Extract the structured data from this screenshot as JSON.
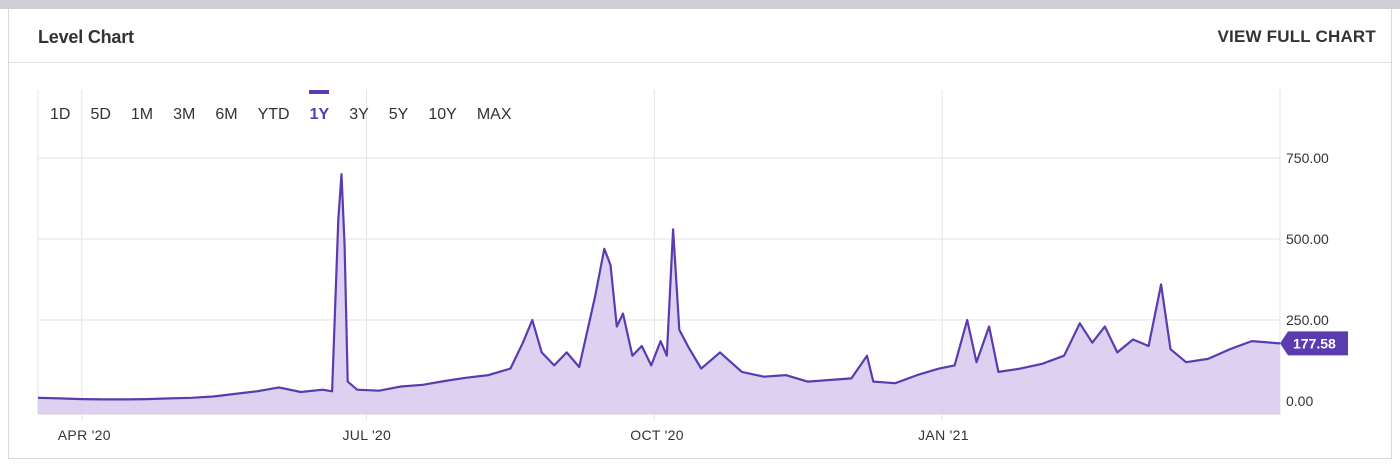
{
  "header": {
    "title": "Level Chart",
    "view_full_label": "VIEW FULL CHART"
  },
  "range_buttons": [
    "1D",
    "5D",
    "1M",
    "3M",
    "6M",
    "YTD",
    "1Y",
    "3Y",
    "5Y",
    "10Y",
    "MAX"
  ],
  "active_range": "1Y",
  "colors": {
    "line": "#5c3bb0",
    "fill": "#d9ccef",
    "grid": "#e3e3e8",
    "badge": "#5c3bb0"
  },
  "chart_data": {
    "type": "area",
    "y_ticks": [
      "750.00",
      "500.00",
      "250.00",
      "0.00"
    ],
    "y_tick_values": [
      750,
      500,
      250,
      0
    ],
    "ylim": [
      -40,
      960
    ],
    "x_ticks": [
      "APR '20",
      "JUL '20",
      "OCT '20",
      "JAN '21"
    ],
    "x_tick_dates": [
      "2020-04-01",
      "2020-07-01",
      "2020-10-01",
      "2021-01-01"
    ],
    "xlim": [
      "2020-03-18",
      "2021-04-19"
    ],
    "last_value_label": "177.58",
    "points": [
      [
        "2020-03-18",
        10
      ],
      [
        "2020-03-25",
        8
      ],
      [
        "2020-04-01",
        6
      ],
      [
        "2020-04-08",
        5
      ],
      [
        "2020-04-15",
        5
      ],
      [
        "2020-04-22",
        6
      ],
      [
        "2020-04-29",
        8
      ],
      [
        "2020-05-06",
        10
      ],
      [
        "2020-05-13",
        14
      ],
      [
        "2020-05-20",
        22
      ],
      [
        "2020-05-27",
        30
      ],
      [
        "2020-06-03",
        42
      ],
      [
        "2020-06-10",
        28
      ],
      [
        "2020-06-17",
        35
      ],
      [
        "2020-06-20",
        30
      ],
      [
        "2020-06-22",
        560
      ],
      [
        "2020-06-23",
        700
      ],
      [
        "2020-06-24",
        480
      ],
      [
        "2020-06-25",
        60
      ],
      [
        "2020-06-28",
        35
      ],
      [
        "2020-07-05",
        32
      ],
      [
        "2020-07-12",
        45
      ],
      [
        "2020-07-19",
        50
      ],
      [
        "2020-07-26",
        62
      ],
      [
        "2020-08-02",
        72
      ],
      [
        "2020-08-09",
        80
      ],
      [
        "2020-08-16",
        100
      ],
      [
        "2020-08-20",
        180
      ],
      [
        "2020-08-23",
        250
      ],
      [
        "2020-08-26",
        150
      ],
      [
        "2020-08-30",
        110
      ],
      [
        "2020-09-03",
        150
      ],
      [
        "2020-09-07",
        105
      ],
      [
        "2020-09-12",
        320
      ],
      [
        "2020-09-15",
        470
      ],
      [
        "2020-09-17",
        420
      ],
      [
        "2020-09-19",
        230
      ],
      [
        "2020-09-21",
        270
      ],
      [
        "2020-09-24",
        140
      ],
      [
        "2020-09-27",
        170
      ],
      [
        "2020-09-30",
        110
      ],
      [
        "2020-10-03",
        185
      ],
      [
        "2020-10-05",
        140
      ],
      [
        "2020-10-07",
        530
      ],
      [
        "2020-10-09",
        220
      ],
      [
        "2020-10-12",
        165
      ],
      [
        "2020-10-16",
        100
      ],
      [
        "2020-10-22",
        150
      ],
      [
        "2020-10-29",
        90
      ],
      [
        "2020-11-05",
        75
      ],
      [
        "2020-11-12",
        80
      ],
      [
        "2020-11-19",
        60
      ],
      [
        "2020-11-26",
        65
      ],
      [
        "2020-12-03",
        70
      ],
      [
        "2020-12-08",
        140
      ],
      [
        "2020-12-10",
        60
      ],
      [
        "2020-12-17",
        55
      ],
      [
        "2020-12-24",
        80
      ],
      [
        "2020-12-31",
        100
      ],
      [
        "2021-01-05",
        110
      ],
      [
        "2021-01-09",
        250
      ],
      [
        "2021-01-12",
        120
      ],
      [
        "2021-01-16",
        230
      ],
      [
        "2021-01-19",
        90
      ],
      [
        "2021-01-26",
        100
      ],
      [
        "2021-02-02",
        115
      ],
      [
        "2021-02-09",
        140
      ],
      [
        "2021-02-14",
        240
      ],
      [
        "2021-02-18",
        180
      ],
      [
        "2021-02-22",
        230
      ],
      [
        "2021-02-26",
        150
      ],
      [
        "2021-03-03",
        190
      ],
      [
        "2021-03-08",
        170
      ],
      [
        "2021-03-12",
        360
      ],
      [
        "2021-03-15",
        160
      ],
      [
        "2021-03-20",
        120
      ],
      [
        "2021-03-27",
        130
      ],
      [
        "2021-04-03",
        160
      ],
      [
        "2021-04-10",
        185
      ],
      [
        "2021-04-19",
        178
      ]
    ]
  }
}
